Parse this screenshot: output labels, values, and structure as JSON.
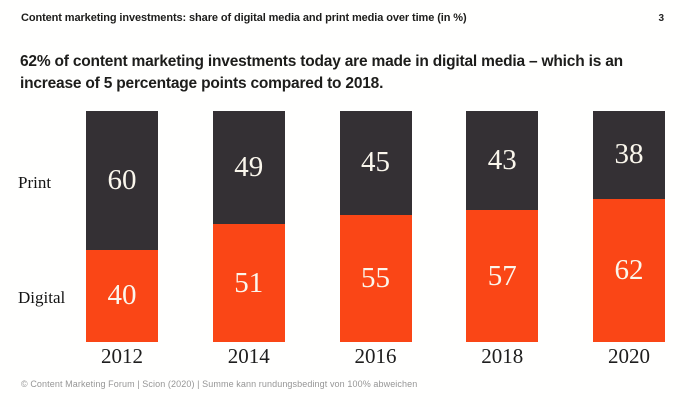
{
  "header": {
    "title": "Content marketing investments: share of digital media and print media over time (in %)",
    "page_number": "3"
  },
  "headline": "62% of content marketing investments today are made in digital media – which is an increase of 5 percentage points compared to 2018.",
  "chart_data": {
    "type": "bar",
    "stacked": true,
    "orientation": "vertical",
    "unit": "%",
    "ylim": [
      0,
      100
    ],
    "categories": [
      "2012",
      "2014",
      "2016",
      "2018",
      "2020"
    ],
    "series": [
      {
        "name": "Print",
        "color": "#343034",
        "values": [
          60,
          49,
          45,
          43,
          38
        ]
      },
      {
        "name": "Digital",
        "color": "#fa4616",
        "values": [
          40,
          51,
          55,
          57,
          62
        ]
      }
    ],
    "value_labels": "inside-white-serif",
    "legend_position": "row-labels-left"
  },
  "footer": {
    "text": "© Content Marketing Forum | Scion (2020) | Summe kann rundungsbedingt von 100% abweichen"
  },
  "colors": {
    "print_segment": "#343034",
    "digital_segment": "#fa4616",
    "heading_text": "#1d1d1b",
    "value_label_text": "#faf6ec",
    "footer_text": "#969696"
  }
}
